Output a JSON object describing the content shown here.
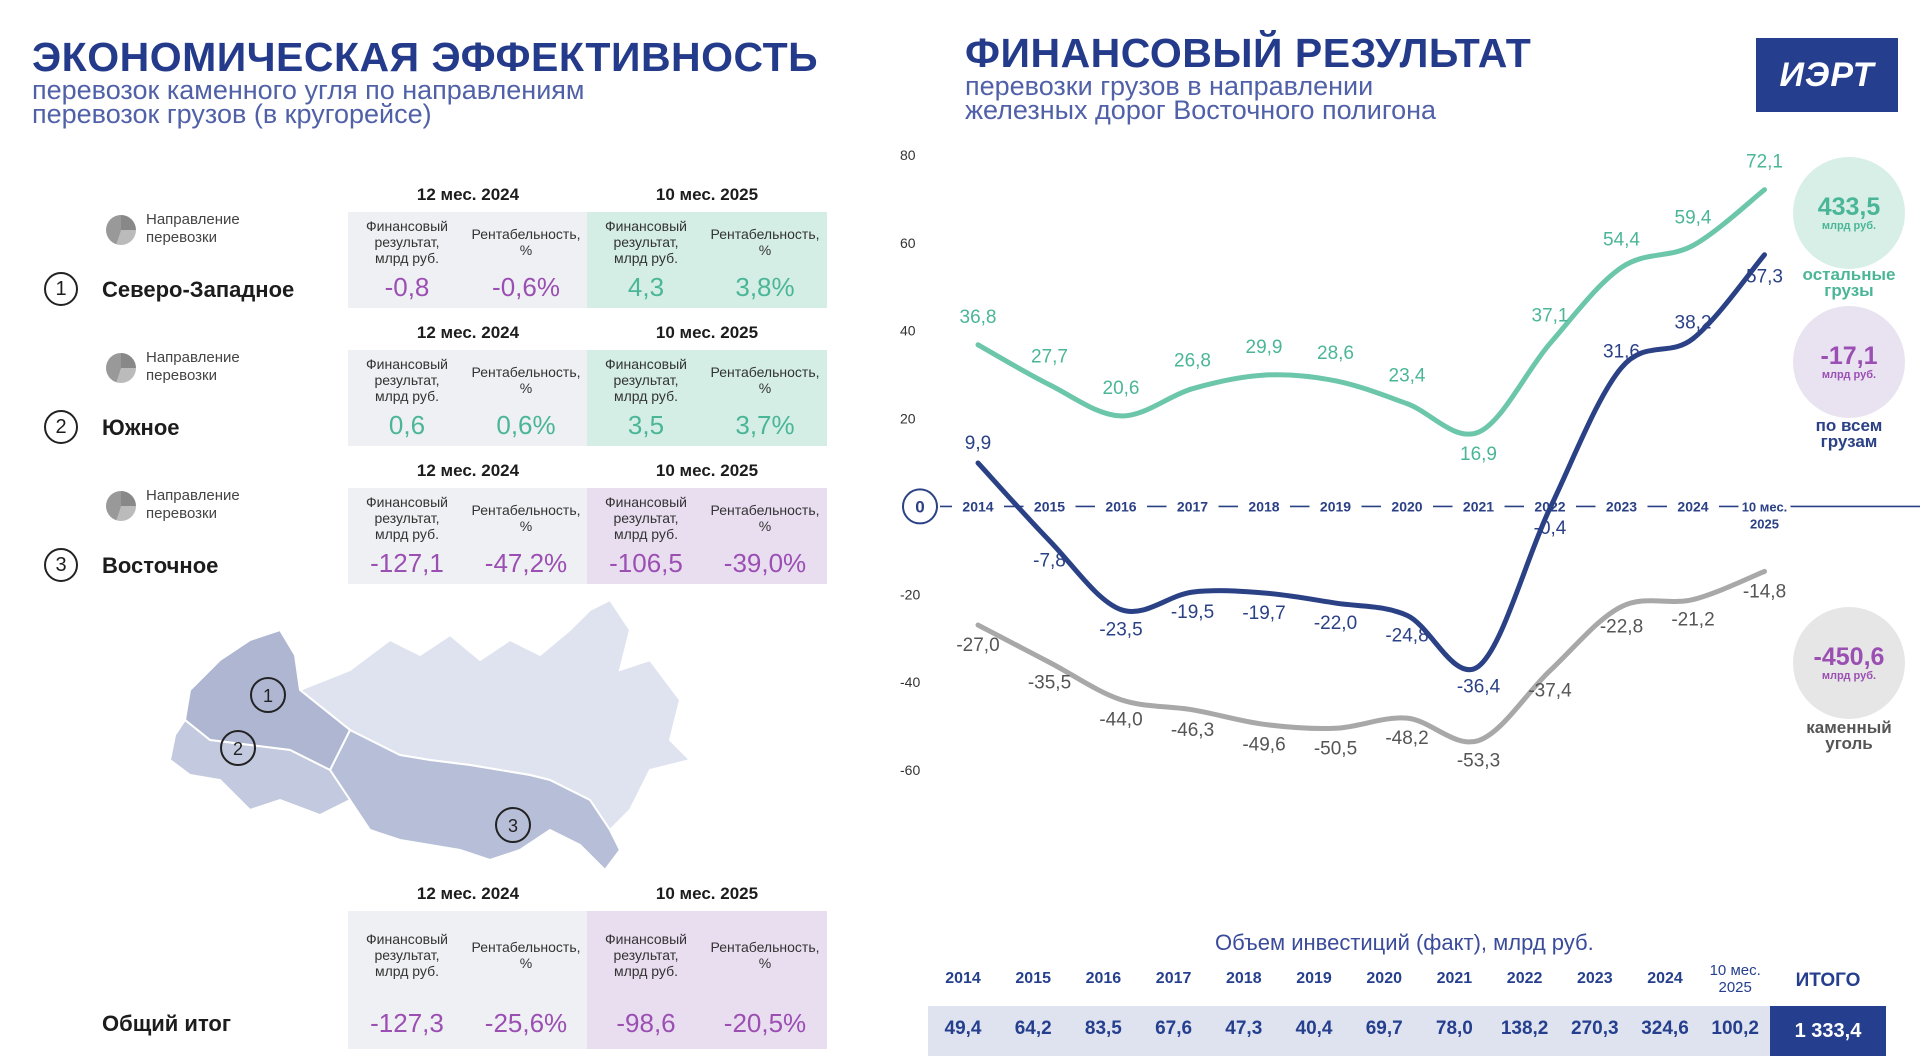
{
  "left": {
    "title": "ЭКОНОМИЧЕСКАЯ ЭФФЕКТИВНОСТЬ",
    "subtitle_line1": "перевозок каменного угля по направлениям",
    "subtitle_line2": "перевозок грузов (в кругорейсе)",
    "direction_label_line1": "Направление",
    "direction_label_line2": "перевозки",
    "period_2024": "12 мес. 2024",
    "period_2025": "10 мес. 2025",
    "hdr_fin_line1": "Финансовый",
    "hdr_fin_line2": "результат,",
    "hdr_fin_line3": "млрд руб.",
    "hdr_rent_line1": "Рентабельность,",
    "hdr_rent_line2": "%",
    "regions": [
      {
        "num": "1",
        "name": "Северо-Западное",
        "fin_2024": "-0,8",
        "rent_2024": "-0,6%",
        "fin_2025": "4,3",
        "rent_2025": "3,8%"
      },
      {
        "num": "2",
        "name": "Южное",
        "fin_2024": "0,6",
        "rent_2024": "0,6%",
        "fin_2025": "3,5",
        "rent_2025": "3,7%"
      },
      {
        "num": "3",
        "name": "Восточное",
        "fin_2024": "-127,1",
        "rent_2024": "-47,2%",
        "fin_2025": "-106,5",
        "rent_2025": "-39,0%"
      }
    ],
    "total": {
      "name": "Общий итог",
      "fin_2024": "-127,3",
      "rent_2024": "-25,6%",
      "fin_2025": "-98,6",
      "rent_2025": "-20,5%"
    },
    "map_labels": [
      "1",
      "2",
      "3"
    ]
  },
  "right": {
    "title": "ФИНАНСОВЫЙ РЕЗУЛЬТАТ",
    "subtitle_line1": "перевозки грузов в направлении",
    "subtitle_line2": "железных дорог Восточного полигона",
    "logo": "ИЭРТ"
  },
  "chart_data": {
    "type": "line",
    "title": "ФИНАНСОВЫЙ РЕЗУЛЬТАТ",
    "categories": [
      "2014",
      "2015",
      "2016",
      "2017",
      "2018",
      "2019",
      "2020",
      "2021",
      "2022",
      "2023",
      "2024",
      "10 мес. 2025"
    ],
    "ylim": [
      -60,
      80
    ],
    "yticks": [
      "80",
      "60",
      "40",
      "20",
      "0",
      "-20",
      "-40",
      "-60"
    ],
    "zero_label": "0",
    "series": [
      {
        "name": "остальные грузы",
        "color": "#6cc6aa",
        "values": [
          36.8,
          27.7,
          20.6,
          26.8,
          29.9,
          28.6,
          23.4,
          16.9,
          37.1,
          54.4,
          59.4,
          72.1
        ],
        "labels": [
          "36,8",
          "27,7",
          "20,6",
          "26,8",
          "29,9",
          "28,6",
          "23,4",
          "16,9",
          "37,1",
          "54,4",
          "59,4",
          "72,1"
        ]
      },
      {
        "name": "по всем грузам",
        "color": "#2b4186",
        "values": [
          9.9,
          -7.8,
          -23.5,
          -19.5,
          -19.7,
          -22.0,
          -24.8,
          -36.4,
          -0.4,
          31.6,
          38.2,
          57.3
        ],
        "labels": [
          "9,9",
          "-7,8",
          "-23,5",
          "-19,5",
          "-19,7",
          "-22,0",
          "-24,8",
          "-36,4",
          "-0,4",
          "31,6",
          "38,2",
          "57,3"
        ]
      },
      {
        "name": "каменный уголь",
        "color": "#a8a8a8",
        "values": [
          -27.0,
          -35.5,
          -44.0,
          -46.3,
          -49.6,
          -50.5,
          -48.2,
          -53.3,
          -37.4,
          -22.8,
          -21.2,
          -14.8
        ],
        "labels": [
          "-27,0",
          "-35,5",
          "-44,0",
          "-46,3",
          "-49,6",
          "-50,5",
          "-48,2",
          "-53,3",
          "-37,4",
          "-22,8",
          "-21,2",
          "-14,8"
        ]
      }
    ],
    "totals": [
      {
        "value": "433,5",
        "unit": "млрд руб.",
        "label_line1": "остальные",
        "label_line2": "грузы",
        "color": "#4bb697",
        "bg": "#d7efe6"
      },
      {
        "value": "-17,1",
        "unit": "млрд руб.",
        "label_line1": "по всем",
        "label_line2": "грузам",
        "color": "#9b4fb3",
        "bg": "#e9e3f1"
      },
      {
        "value": "-450,6",
        "unit": "млрд руб.",
        "label_line1": "каменный",
        "label_line2": "уголь",
        "color": "#9b4fb3",
        "bg": "#e6e6e6"
      }
    ]
  },
  "investments": {
    "title": "Объем инвестиций (факт), млрд руб.",
    "years": [
      "2014",
      "2015",
      "2016",
      "2017",
      "2018",
      "2019",
      "2020",
      "2021",
      "2022",
      "2023",
      "2024",
      "10 мес.\n2025"
    ],
    "values": [
      "49,4",
      "64,2",
      "83,5",
      "67,6",
      "47,3",
      "40,4",
      "69,7",
      "78,0",
      "138,2",
      "270,3",
      "324,6",
      "100,2"
    ],
    "total_label": "ИТОГО",
    "total_value": "1 333,4"
  }
}
